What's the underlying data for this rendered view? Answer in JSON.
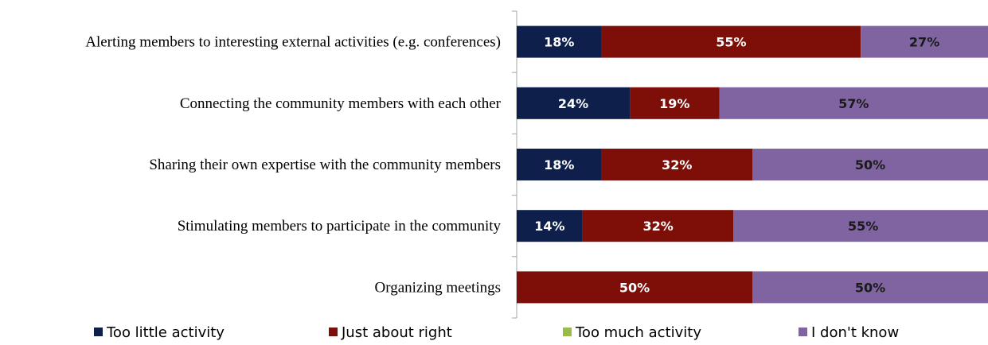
{
  "chart_data": {
    "type": "bar",
    "orientation": "horizontal",
    "stacked": "percent",
    "categories": [
      "Alerting members to interesting external activities (e.g. conferences)",
      "Connecting the community members with each other",
      "Sharing their own expertise with the community members",
      "Stimulating members to participate in the community",
      "Organizing meetings"
    ],
    "series": [
      {
        "name": "Too little activity",
        "color": "#0d1f4a",
        "label_color": "#ffffff",
        "values": [
          18,
          24,
          18,
          14,
          0
        ]
      },
      {
        "name": "Just about right",
        "color": "#7e0e08",
        "label_color": "#ffffff",
        "values": [
          55,
          19,
          32,
          32,
          50
        ]
      },
      {
        "name": "Too much activity",
        "color": "#98bb4a",
        "label_color": "#000000",
        "values": [
          0,
          0,
          0,
          0,
          0
        ]
      },
      {
        "name": "I don't know",
        "color": "#8064a2",
        "label_color": "#1a1a1a",
        "values": [
          27,
          57,
          50,
          55,
          50
        ]
      }
    ],
    "value_suffix": "%",
    "xlim": [
      0,
      100
    ],
    "grid": false,
    "legend_position": "bottom"
  }
}
